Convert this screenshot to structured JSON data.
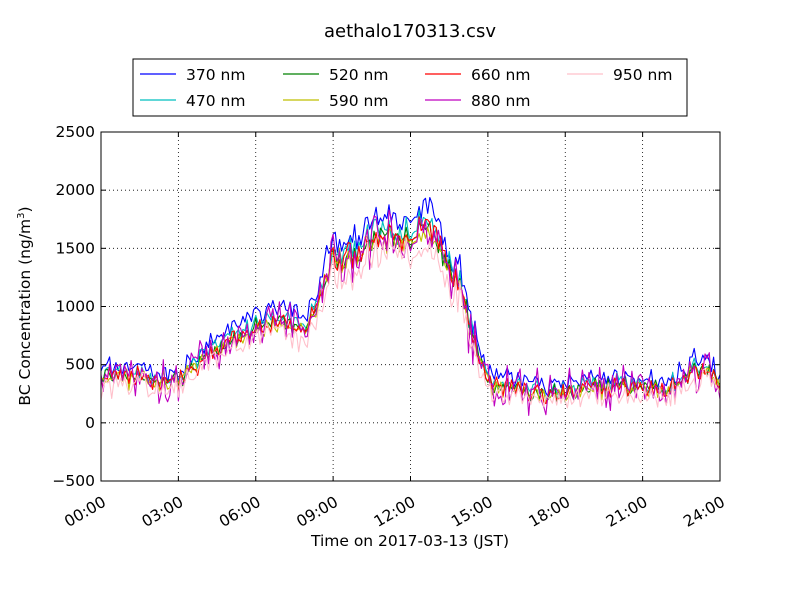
{
  "chart_data": {
    "type": "line",
    "title": "aethalo170313.csv",
    "xlabel": "Time on 2017-03-13 (JST)",
    "ylabel_main": "BC Concentration (ng/m",
    "ylabel_sup": "3",
    "ylabel_close": ")",
    "xlim_hours": [
      0,
      24
    ],
    "ylim": [
      -500,
      2500
    ],
    "x_ticks_hours": [
      0,
      3,
      6,
      9,
      12,
      15,
      18,
      21,
      24
    ],
    "x_tick_labels": [
      "00:00",
      "03:00",
      "06:00",
      "09:00",
      "12:00",
      "15:00",
      "18:00",
      "21:00",
      "24:00"
    ],
    "y_ticks": [
      -500,
      0,
      500,
      1000,
      1500,
      2000,
      2500
    ],
    "y_tick_labels": [
      "−500",
      "0",
      "500",
      "1000",
      "1500",
      "2000",
      "2500"
    ],
    "grid": true,
    "legend_position": "top, above plot",
    "sample_interval_minutes": 5,
    "series": [
      {
        "name": "370 nm",
        "color": "#0000ff",
        "noise": 90
      },
      {
        "name": "470 nm",
        "color": "#00bfbf",
        "noise": 80
      },
      {
        "name": "520 nm",
        "color": "#008000",
        "noise": 80
      },
      {
        "name": "590 nm",
        "color": "#bfbf00",
        "noise": 85
      },
      {
        "name": "660 nm",
        "color": "#ff0000",
        "noise": 90
      },
      {
        "name": "880 nm",
        "color": "#bf00bf",
        "noise": 180
      },
      {
        "name": "950 nm",
        "color": "#ffc0cb",
        "noise": 110
      }
    ],
    "trend_hours": [
      0,
      1,
      2,
      3,
      4,
      5,
      6,
      7,
      8,
      8.5,
      9,
      9.5,
      10,
      10.5,
      11,
      11.5,
      12,
      12.5,
      13,
      13.5,
      14,
      14.5,
      15,
      15.5,
      16,
      17,
      18,
      19,
      20,
      21,
      22,
      22.5,
      23,
      23.5,
      24
    ],
    "trend_values": [
      400,
      390,
      360,
      360,
      550,
      700,
      820,
      850,
      820,
      1100,
      1420,
      1400,
      1480,
      1560,
      1600,
      1560,
      1600,
      1700,
      1600,
      1350,
      1150,
      700,
      350,
      330,
      300,
      250,
      250,
      300,
      320,
      300,
      300,
      350,
      450,
      480,
      300
    ],
    "series_offsets": [
      50,
      20,
      0,
      0,
      0,
      0,
      -40
    ],
    "series_scales": [
      1.08,
      1.02,
      1.0,
      0.98,
      1.0,
      1.0,
      0.93
    ]
  }
}
